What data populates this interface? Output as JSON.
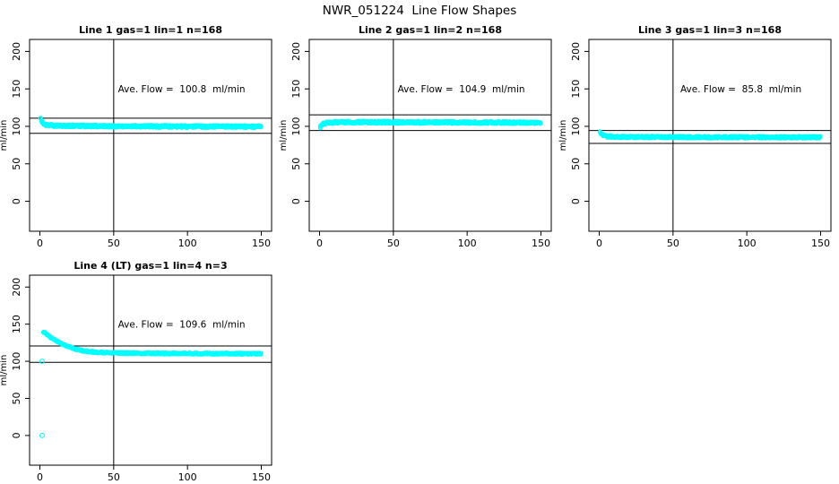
{
  "window": {
    "background_color": "#FFFFFF",
    "accent_point_color": "#00FFFF",
    "line_color": "#000000"
  },
  "chart_data": {
    "type": "scatter",
    "title": "NWR_051224  Line Flow Shapes",
    "ylabel": "ml/min",
    "xlabel": "",
    "x_ticks": [
      0,
      50,
      100,
      150
    ],
    "y_ticks": [
      0,
      50,
      100,
      150,
      200
    ],
    "x_axis_range_shown": [
      0,
      150
    ],
    "y_axis_range_shown": [
      0,
      200
    ],
    "xlim": [
      -7,
      157
    ],
    "ylim": [
      -40,
      216
    ],
    "grid": "off",
    "legend": "none",
    "vline_x": 50,
    "point_color": "#00FFFF",
    "point_style": "open-circle",
    "panels": [
      {
        "title": "Line 1 gas=1 lin=1 n=168",
        "ave_flow_value": 100.8,
        "ave_flow_unit": "ml/min",
        "ave_flow_label": "Ave. Flow =  100.8  ml/min",
        "ref_lines": [
          90.7,
          110.9
        ],
        "label_pos": [
          96,
          150
        ],
        "x_start": 0.5,
        "profile": [
          [
            0.5,
            110
          ],
          [
            1.5,
            106
          ],
          [
            3,
            102.5
          ],
          [
            6,
            101.5
          ],
          [
            12,
            100.9
          ],
          [
            25,
            100.5
          ],
          [
            50,
            100.2
          ],
          [
            90,
            99.9
          ],
          [
            150,
            99.6
          ]
        ],
        "band_halfwidth": 1.7,
        "points_per_x": 3,
        "outliers": []
      },
      {
        "title": "Line 2 gas=1 lin=2 n=168",
        "ave_flow_value": 104.9,
        "ave_flow_unit": "ml/min",
        "ave_flow_label": "Ave. Flow =  104.9  ml/min",
        "ref_lines": [
          94.4,
          115.4
        ],
        "label_pos": [
          96,
          150
        ],
        "x_start": 0.5,
        "profile": [
          [
            0.5,
            99
          ],
          [
            1.5,
            101.5
          ],
          [
            3,
            103.8
          ],
          [
            6,
            105
          ],
          [
            12,
            105.6
          ],
          [
            30,
            105.5
          ],
          [
            80,
            105.2
          ],
          [
            150,
            104.9
          ]
        ],
        "band_halfwidth": 1.7,
        "points_per_x": 3,
        "outliers": []
      },
      {
        "title": "Line 3 gas=1 lin=3 n=168",
        "ave_flow_value": 85.8,
        "ave_flow_unit": "ml/min",
        "ave_flow_label": "Ave. Flow =  85.8  ml/min",
        "ref_lines": [
          77.2,
          94.4
        ],
        "label_pos": [
          96,
          150
        ],
        "x_start": 0.5,
        "profile": [
          [
            0.5,
            92.5
          ],
          [
            1.5,
            89.5
          ],
          [
            3,
            87.5
          ],
          [
            6,
            86.4
          ],
          [
            12,
            85.9
          ],
          [
            30,
            85.7
          ],
          [
            80,
            85.5
          ],
          [
            150,
            85.4
          ]
        ],
        "band_halfwidth": 1.5,
        "points_per_x": 3,
        "outliers": []
      },
      {
        "title": "Line 4 (LT) gas=1 lin=4 n=3",
        "ave_flow_value": 109.6,
        "ave_flow_unit": "ml/min",
        "ave_flow_label": "Ave. Flow =  109.6  ml/min",
        "ref_lines": [
          98.6,
          120.6
        ],
        "label_pos": [
          96,
          150
        ],
        "x_start": 2.5,
        "profile": [
          [
            2.5,
            139
          ],
          [
            4,
            137
          ],
          [
            6,
            134
          ],
          [
            9,
            130
          ],
          [
            12,
            126.5
          ],
          [
            16,
            122.5
          ],
          [
            20,
            119.2
          ],
          [
            25,
            116
          ],
          [
            30,
            113.8
          ],
          [
            38,
            112.2
          ],
          [
            50,
            111.3
          ],
          [
            70,
            110.8
          ],
          [
            110,
            110.4
          ],
          [
            150,
            110.1
          ]
        ],
        "band_halfwidth": 1.0,
        "points_per_x": 2,
        "outliers": [
          [
            1.5,
            100
          ],
          [
            1.5,
            0
          ]
        ]
      }
    ]
  }
}
